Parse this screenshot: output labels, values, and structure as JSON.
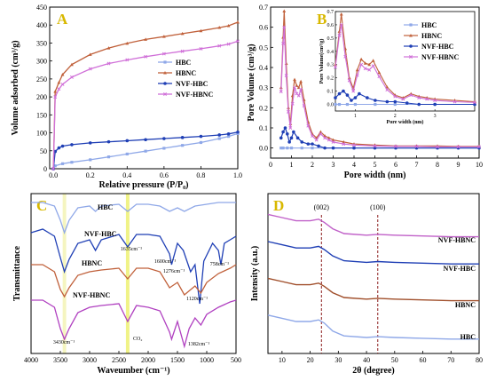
{
  "chart_data": [
    {
      "panel": "A",
      "type": "line",
      "xlabel": "Relative pressure (P/P₀)",
      "ylabel": "Volume adsorbed (cm³/g)",
      "xlim": [
        0,
        1.0
      ],
      "ylim": [
        0,
        450
      ],
      "xticks": [
        "0.0",
        "0.2",
        "0.4",
        "0.6",
        "0.8",
        "1.0"
      ],
      "yticks": [
        "0",
        "50",
        "100",
        "150",
        "200",
        "250",
        "300",
        "350",
        "400",
        "450"
      ],
      "legend_position": "center",
      "series": [
        {
          "name": "HBC",
          "color": "#8fa8e8",
          "x": [
            0,
            0.01,
            0.05,
            0.1,
            0.2,
            0.3,
            0.4,
            0.5,
            0.6,
            0.7,
            0.8,
            0.9,
            0.95,
            1.0
          ],
          "y": [
            0,
            8,
            14,
            18,
            25,
            33,
            41,
            49,
            57,
            65,
            73,
            84,
            90,
            98
          ]
        },
        {
          "name": "HBNC",
          "color": "#c0603a",
          "x": [
            0,
            0.01,
            0.03,
            0.05,
            0.1,
            0.2,
            0.3,
            0.4,
            0.5,
            0.6,
            0.7,
            0.8,
            0.9,
            0.95,
            1.0
          ],
          "y": [
            0,
            215,
            240,
            262,
            290,
            318,
            336,
            349,
            360,
            368,
            376,
            384,
            393,
            398,
            408
          ]
        },
        {
          "name": "NVF-HBC",
          "color": "#1f3fb5",
          "x": [
            0,
            0.01,
            0.03,
            0.05,
            0.1,
            0.2,
            0.3,
            0.4,
            0.5,
            0.6,
            0.7,
            0.8,
            0.9,
            0.95,
            1.0
          ],
          "y": [
            0,
            48,
            58,
            63,
            67,
            72,
            75,
            78,
            81,
            84,
            87,
            90,
            94,
            97,
            102
          ]
        },
        {
          "name": "NVF-HBNC",
          "color": "#d070d8",
          "x": [
            0,
            0.01,
            0.03,
            0.05,
            0.1,
            0.2,
            0.3,
            0.4,
            0.5,
            0.6,
            0.7,
            0.8,
            0.9,
            0.95,
            1.0
          ],
          "y": [
            0,
            200,
            222,
            235,
            255,
            278,
            293,
            303,
            312,
            320,
            327,
            334,
            342,
            347,
            355
          ]
        }
      ]
    },
    {
      "panel": "B",
      "type": "line",
      "xlabel": "Pore width (nm)",
      "ylabel": "Pore Volume (cm³/g)",
      "xlim": [
        0,
        10
      ],
      "ylim": [
        -0.05,
        0.7
      ],
      "xticks": [
        "0",
        "1",
        "2",
        "3",
        "4",
        "5",
        "6",
        "7",
        "8",
        "9",
        "10"
      ],
      "yticks": [
        "0.0",
        "0.1",
        "0.2",
        "0.3",
        "0.4",
        "0.5",
        "0.6",
        "0.7"
      ],
      "legend_position": "top-right",
      "inset": {
        "xlabel": "Pore width (nm)",
        "ylabel": "Pore Volume(cm³/g)",
        "xlim": [
          0.5,
          4
        ],
        "ylim": [
          -0.05,
          0.7
        ],
        "xticks": [
          "1",
          "2",
          "3"
        ],
        "yticks": [
          "0.0",
          "0.1",
          "0.2",
          "0.3",
          "0.4",
          "0.5",
          "0.6",
          "0.7"
        ]
      },
      "series": [
        {
          "name": "HBC",
          "color": "#8fa8e8",
          "x": [
            0.5,
            0.6,
            0.8,
            1.0,
            1.5,
            2,
            3,
            4,
            5,
            6,
            7,
            8,
            9,
            10
          ],
          "y": [
            0,
            0,
            0,
            0,
            0,
            0,
            0,
            0,
            0,
            0,
            0,
            0,
            0,
            0
          ]
        },
        {
          "name": "HBNC",
          "color": "#c0603a",
          "x": [
            0.5,
            0.6,
            0.65,
            0.75,
            0.85,
            0.95,
            1.05,
            1.15,
            1.25,
            1.35,
            1.45,
            1.6,
            1.8,
            2.0,
            2.2,
            2.4,
            2.6,
            2.8,
            3.0,
            3.5,
            4,
            5,
            6,
            7,
            8,
            9,
            10
          ],
          "y": [
            0.3,
            0.55,
            0.68,
            0.42,
            0.2,
            0.12,
            0.26,
            0.34,
            0.31,
            0.3,
            0.33,
            0.24,
            0.13,
            0.07,
            0.05,
            0.08,
            0.06,
            0.05,
            0.04,
            0.03,
            0.02,
            0.015,
            0.01,
            0.01,
            0.01,
            0.008,
            0.008
          ]
        },
        {
          "name": "NVF-HBC",
          "color": "#1f3fb5",
          "x": [
            0.5,
            0.6,
            0.7,
            0.8,
            0.9,
            1.0,
            1.1,
            1.3,
            1.5,
            1.8,
            2.0,
            2.3,
            2.6,
            3.0,
            4,
            5,
            6,
            7,
            8,
            9,
            10
          ],
          "y": [
            0.05,
            0.08,
            0.1,
            0.07,
            0.03,
            0.05,
            0.08,
            0.05,
            0.03,
            0.02,
            0.02,
            0.01,
            0.0,
            0.0,
            0,
            0,
            0,
            0,
            0,
            0,
            0
          ]
        },
        {
          "name": "NVF-HBNC",
          "color": "#d070d8",
          "x": [
            0.5,
            0.6,
            0.65,
            0.75,
            0.85,
            0.95,
            1.05,
            1.15,
            1.25,
            1.35,
            1.45,
            1.6,
            1.8,
            2.0,
            2.2,
            2.4,
            2.6,
            2.8,
            3.0,
            3.5,
            4,
            5,
            6,
            7,
            8,
            9,
            10
          ],
          "y": [
            0.28,
            0.52,
            0.6,
            0.36,
            0.18,
            0.1,
            0.22,
            0.3,
            0.27,
            0.26,
            0.29,
            0.21,
            0.11,
            0.06,
            0.04,
            0.07,
            0.05,
            0.04,
            0.03,
            0.02,
            0.015,
            0.01,
            0.008,
            0.008,
            0.006,
            0.006,
            0.006
          ]
        }
      ]
    },
    {
      "panel": "C",
      "type": "line",
      "xlabel": "Waveumber (cm⁻¹)",
      "ylabel": "Transmittance",
      "xlim": [
        4000,
        500
      ],
      "xticks": [
        "4000",
        "3500",
        "3000",
        "2500",
        "2000",
        "1500",
        "1000",
        "500"
      ],
      "labels": [
        "HBC",
        "NVF-HBC",
        "HBNC",
        "NVF-HBNC"
      ],
      "annotations": [
        "1635cm⁻¹",
        "1600cm⁻¹",
        "1276cm⁻¹",
        "1120cm⁻¹",
        "758cm⁻¹",
        "3430cm⁻¹",
        "CO₂",
        "1382cm⁻¹"
      ],
      "highlights": [
        3430,
        2350
      ],
      "series": [
        {
          "name": "HBC",
          "color": "#8fa8e8",
          "x": [
            4000,
            3800,
            3600,
            3500,
            3430,
            3350,
            3200,
            3000,
            2900,
            2800,
            2500,
            2350,
            2200,
            2000,
            1800,
            1635,
            1500,
            1382,
            1200,
            1000,
            800,
            600,
            500
          ],
          "y": [
            0.95,
            0.95,
            0.93,
            0.85,
            0.78,
            0.85,
            0.92,
            0.93,
            0.9,
            0.93,
            0.94,
            0.9,
            0.94,
            0.94,
            0.93,
            0.9,
            0.92,
            0.9,
            0.93,
            0.94,
            0.95,
            0.95,
            0.95
          ]
        },
        {
          "name": "NVF-HBC",
          "color": "#1f3fb5",
          "x": [
            4000,
            3800,
            3600,
            3500,
            3430,
            3350,
            3200,
            3000,
            2900,
            2800,
            2500,
            2350,
            2200,
            2000,
            1800,
            1635,
            1600,
            1500,
            1400,
            1276,
            1200,
            1120,
            1050,
            900,
            800,
            758,
            700,
            600,
            500
          ],
          "y": [
            0.78,
            0.8,
            0.76,
            0.64,
            0.56,
            0.63,
            0.72,
            0.74,
            0.68,
            0.74,
            0.77,
            0.7,
            0.77,
            0.77,
            0.76,
            0.66,
            0.6,
            0.72,
            0.68,
            0.56,
            0.6,
            0.38,
            0.62,
            0.72,
            0.68,
            0.6,
            0.72,
            0.74,
            0.76
          ]
        },
        {
          "name": "HBNC",
          "color": "#c0603a",
          "x": [
            4000,
            3800,
            3600,
            3500,
            3430,
            3350,
            3200,
            3000,
            2800,
            2500,
            2350,
            2200,
            2000,
            1800,
            1635,
            1500,
            1382,
            1200,
            1100,
            1000,
            800,
            600,
            500
          ],
          "y": [
            0.6,
            0.6,
            0.56,
            0.46,
            0.42,
            0.47,
            0.54,
            0.56,
            0.57,
            0.58,
            0.52,
            0.58,
            0.58,
            0.56,
            0.47,
            0.5,
            0.43,
            0.48,
            0.44,
            0.5,
            0.55,
            0.58,
            0.6
          ]
        },
        {
          "name": "NVF-HBNC",
          "color": "#b040c0",
          "x": [
            4000,
            3800,
            3600,
            3500,
            3430,
            3350,
            3200,
            3000,
            2800,
            2500,
            2350,
            2200,
            2000,
            1800,
            1635,
            1600,
            1500,
            1382,
            1300,
            1200,
            1100,
            1000,
            800,
            600,
            500
          ],
          "y": [
            0.4,
            0.4,
            0.36,
            0.24,
            0.18,
            0.24,
            0.33,
            0.36,
            0.37,
            0.38,
            0.28,
            0.37,
            0.36,
            0.34,
            0.22,
            0.18,
            0.28,
            0.14,
            0.24,
            0.3,
            0.26,
            0.32,
            0.36,
            0.39,
            0.4
          ]
        }
      ]
    },
    {
      "panel": "D",
      "type": "line",
      "xlabel": "2θ (degree)",
      "ylabel": "Intensity (a.u.)",
      "xlim": [
        5,
        80
      ],
      "xticks": [
        "10",
        "20",
        "30",
        "40",
        "50",
        "60",
        "70",
        "80"
      ],
      "labels": [
        "NVF-HBNC",
        "NVF-HBC",
        "HBNC",
        "HBC"
      ],
      "reference_lines": [
        {
          "x": 24,
          "label": "(002)"
        },
        {
          "x": 44,
          "label": "(100)"
        }
      ],
      "series": [
        {
          "name": "NVF-HBNC",
          "color": "#c060c8",
          "x": [
            5,
            10,
            15,
            20,
            23,
            25,
            28,
            32,
            40,
            44,
            50,
            60,
            70,
            80
          ],
          "y": [
            0.87,
            0.85,
            0.83,
            0.83,
            0.84,
            0.82,
            0.78,
            0.75,
            0.74,
            0.745,
            0.74,
            0.735,
            0.73,
            0.73
          ]
        },
        {
          "name": "NVF-HBC",
          "color": "#1f3fb5",
          "x": [
            5,
            10,
            15,
            20,
            23,
            25,
            28,
            32,
            40,
            44,
            50,
            60,
            70,
            80
          ],
          "y": [
            0.7,
            0.68,
            0.66,
            0.66,
            0.67,
            0.65,
            0.61,
            0.58,
            0.57,
            0.575,
            0.57,
            0.565,
            0.56,
            0.56
          ]
        },
        {
          "name": "HBNC",
          "color": "#a04e2a",
          "x": [
            5,
            10,
            15,
            20,
            23,
            25,
            28,
            32,
            40,
            44,
            50,
            60,
            70,
            80
          ],
          "y": [
            0.47,
            0.45,
            0.43,
            0.43,
            0.44,
            0.42,
            0.38,
            0.35,
            0.34,
            0.345,
            0.34,
            0.335,
            0.33,
            0.33
          ]
        },
        {
          "name": "HBC",
          "color": "#8fa8e8",
          "x": [
            5,
            10,
            15,
            20,
            23,
            25,
            28,
            32,
            40,
            44,
            50,
            60,
            70,
            80
          ],
          "y": [
            0.24,
            0.22,
            0.2,
            0.2,
            0.21,
            0.19,
            0.14,
            0.11,
            0.1,
            0.105,
            0.1,
            0.095,
            0.09,
            0.09
          ]
        }
      ]
    }
  ]
}
